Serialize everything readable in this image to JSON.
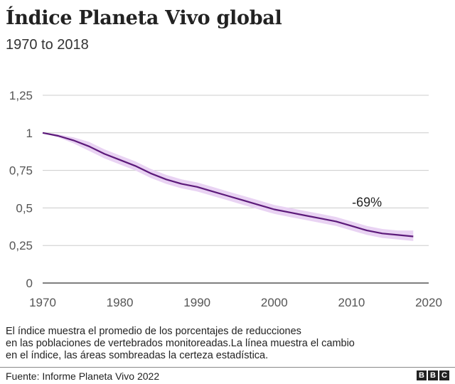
{
  "title": "Índice Planeta Vivo global",
  "subtitle": "1970 to 2018",
  "note_lines": [
    "El índice muestra el promedio de los porcentajes de reducciones",
    "en las poblaciones de vertebrados monitoreadas.La línea muestra el cambio",
    "en el índice, las áreas sombreadas la certeza estadística."
  ],
  "source": "Fuente: Informe Planeta Vivo 2022",
  "logo_letters": [
    "B",
    "B",
    "C"
  ],
  "colors": {
    "line": "#5c1a7a",
    "band": "#e9d3f3",
    "grid": "#cccccc",
    "baseline": "#333333"
  },
  "chart_data": {
    "type": "area",
    "x_ticks": [
      "1970",
      "1980",
      "1990",
      "2000",
      "2010",
      "2020"
    ],
    "y_ticks": [
      "0",
      "0,25",
      "0,5",
      "0,75",
      "1",
      "1,25"
    ],
    "xlim": [
      1970,
      2020
    ],
    "ylim": [
      0,
      1.25
    ],
    "grid": true,
    "annotation": {
      "text": "-69%",
      "x": 2012,
      "y": 0.5
    },
    "series": [
      {
        "x": [
          1970,
          1972,
          1974,
          1976,
          1978,
          1980,
          1982,
          1984,
          1986,
          1988,
          1990,
          1992,
          1994,
          1996,
          1998,
          2000,
          2002,
          2004,
          2006,
          2008,
          2010,
          2012,
          2014,
          2016,
          2018
        ],
        "values": [
          1.0,
          0.98,
          0.95,
          0.91,
          0.86,
          0.82,
          0.78,
          0.73,
          0.69,
          0.66,
          0.64,
          0.61,
          0.58,
          0.55,
          0.52,
          0.49,
          0.47,
          0.45,
          0.43,
          0.41,
          0.38,
          0.35,
          0.33,
          0.32,
          0.31
        ],
        "upper": [
          1.0,
          0.99,
          0.97,
          0.94,
          0.89,
          0.85,
          0.81,
          0.76,
          0.72,
          0.69,
          0.67,
          0.64,
          0.61,
          0.58,
          0.55,
          0.52,
          0.5,
          0.48,
          0.46,
          0.44,
          0.41,
          0.38,
          0.36,
          0.35,
          0.35
        ],
        "lower": [
          1.0,
          0.97,
          0.93,
          0.88,
          0.83,
          0.79,
          0.75,
          0.7,
          0.66,
          0.63,
          0.61,
          0.58,
          0.55,
          0.52,
          0.49,
          0.46,
          0.44,
          0.42,
          0.4,
          0.38,
          0.35,
          0.32,
          0.3,
          0.29,
          0.28
        ]
      }
    ]
  }
}
